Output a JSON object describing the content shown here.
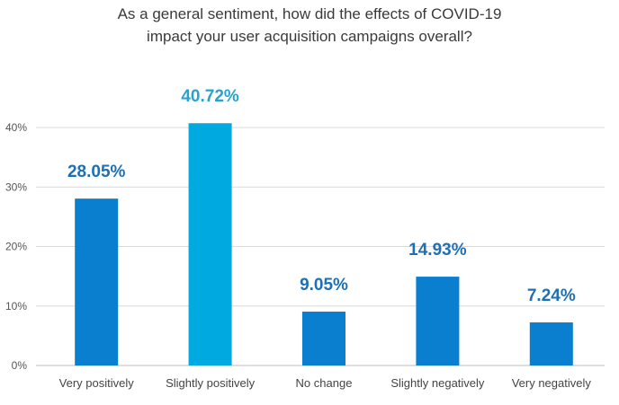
{
  "chart_data": {
    "type": "bar",
    "title_lines": [
      "As a general sentiment, how did the effects of COVID-19",
      "impact your user acquisition campaigns overall?"
    ],
    "categories": [
      "Very positively",
      "Slightly positively",
      "No change",
      "Slightly negatively",
      "Very negatively"
    ],
    "values": [
      28.05,
      40.72,
      9.05,
      14.93,
      7.24
    ],
    "data_labels": [
      "28.05%",
      "40.72%",
      "9.05%",
      "14.93%",
      "7.24%"
    ],
    "bar_colors": [
      "#0a7fd0",
      "#00a9e0",
      "#0a7fd0",
      "#0a7fd0",
      "#0a7fd0"
    ],
    "label_colors": [
      "#1e6fb3",
      "#25a3d1",
      "#1e6fb3",
      "#1e6fb3",
      "#1e6fb3"
    ],
    "yticks": [
      {
        "value": 0,
        "label": "0%"
      },
      {
        "value": 10,
        "label": "10%"
      },
      {
        "value": 20,
        "label": "20%"
      },
      {
        "value": 30,
        "label": "30%"
      },
      {
        "value": 40,
        "label": "40%"
      }
    ],
    "ylim": [
      0,
      40
    ],
    "grid": true,
    "xlabel": "",
    "ylabel": ""
  }
}
